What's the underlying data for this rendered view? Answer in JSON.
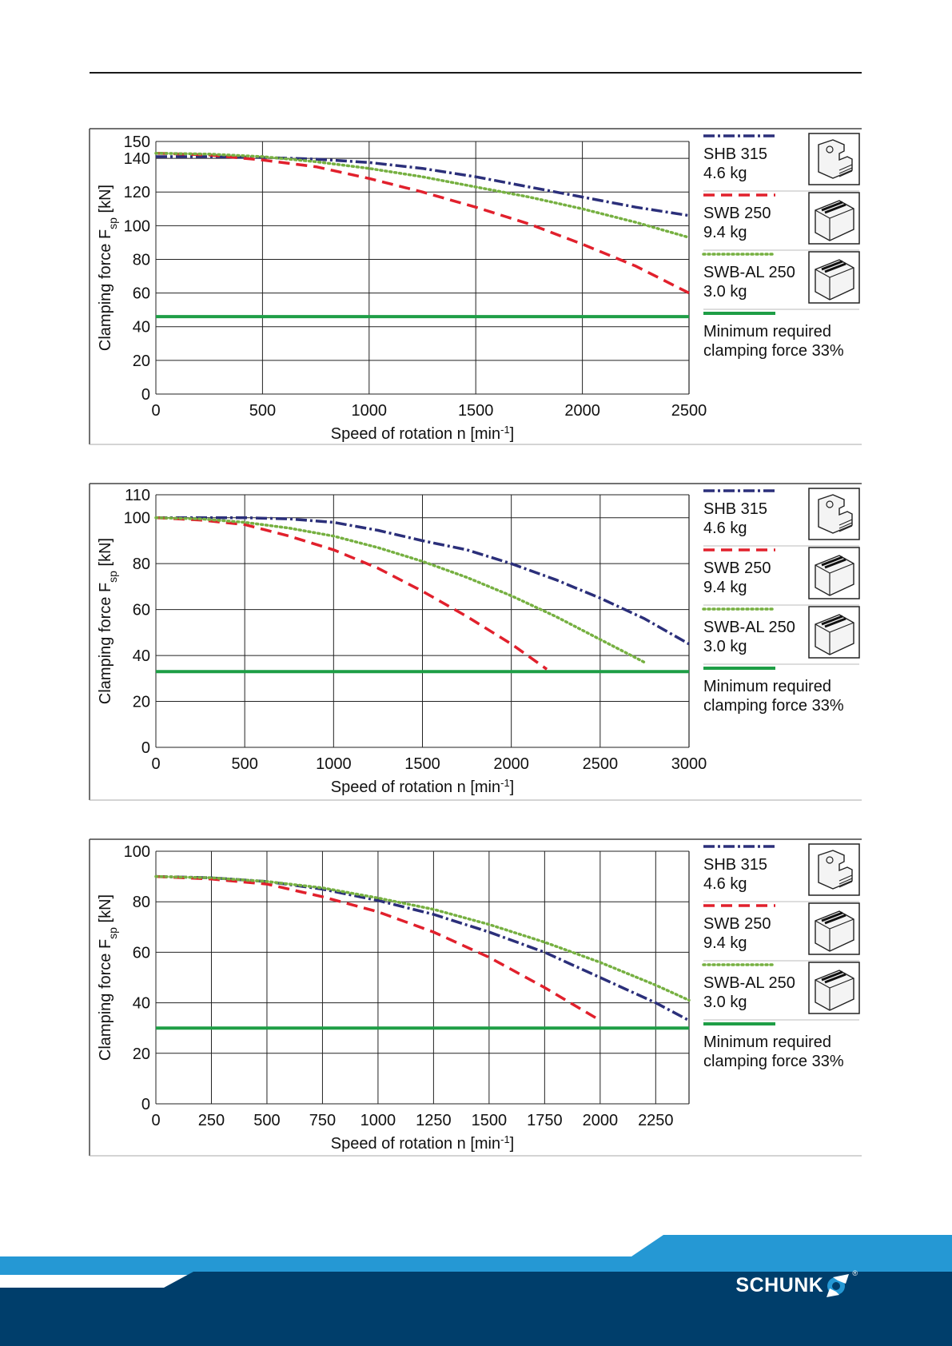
{
  "colors": {
    "shb": "#2b2f7a",
    "swb": "#e1202c",
    "swbal": "#76b041",
    "min": "#1e9e46",
    "footer_light": "#2598d4",
    "footer_dark": "#003e6b"
  },
  "legend": {
    "shb_name": "SHB 315",
    "shb_weight": "4.6 kg",
    "swb_name": "SWB 250",
    "swb_weight": "9.4 kg",
    "swbal_name": "SWB-AL 250",
    "swbal_weight": "3.0 kg",
    "min_line1": "Minimum required",
    "min_line2": "clamping force 33%"
  },
  "brand": {
    "name": "SCHUNK",
    "mark": "®"
  },
  "chart_data": [
    {
      "type": "line",
      "title": "",
      "xlabel": "Speed of rotation n [min-1]",
      "ylabel": "Clamping force Fsp [kN]",
      "xlim": [
        0,
        2500
      ],
      "ylim": [
        0,
        150
      ],
      "x_ticks": [
        0,
        500,
        1000,
        1500,
        2000,
        2500
      ],
      "y_ticks": [
        0,
        20,
        40,
        60,
        80,
        100,
        120,
        140,
        150
      ],
      "series": [
        {
          "name": "SHB 315 4.6 kg",
          "x": [
            0,
            250,
            500,
            750,
            1000,
            1250,
            1500,
            1750,
            2000,
            2250,
            2500
          ],
          "values": [
            141,
            141,
            140.5,
            139.5,
            137.5,
            134,
            129,
            123,
            117,
            111,
            106
          ]
        },
        {
          "name": "SWB 250 9.4 kg",
          "x": [
            0,
            250,
            500,
            750,
            1000,
            1250,
            1500,
            1750,
            2000,
            2250,
            2500
          ],
          "values": [
            143,
            142,
            139,
            135,
            128,
            120,
            111,
            101,
            89,
            76,
            60
          ]
        },
        {
          "name": "SWB-AL 250 3.0 kg",
          "x": [
            0,
            250,
            500,
            750,
            1000,
            1250,
            1500,
            1750,
            2000,
            2250,
            2500
          ],
          "values": [
            143,
            142.5,
            141,
            138,
            134,
            129,
            123,
            117,
            110,
            102,
            93
          ]
        },
        {
          "name": "Minimum required clamping force 33%",
          "x": [
            0,
            2500
          ],
          "values": [
            46,
            46
          ]
        }
      ]
    },
    {
      "type": "line",
      "title": "",
      "xlabel": "Speed of rotation n [min-1]",
      "ylabel": "Clamping force Fsp [kN]",
      "xlim": [
        0,
        3000
      ],
      "ylim": [
        0,
        110
      ],
      "x_ticks": [
        0,
        500,
        1000,
        1500,
        2000,
        2500,
        3000
      ],
      "y_ticks": [
        0,
        20,
        40,
        60,
        80,
        100,
        110
      ],
      "series": [
        {
          "name": "SHB 315 4.6 kg",
          "x": [
            0,
            250,
            500,
            750,
            1000,
            1250,
            1500,
            1750,
            2000,
            2250,
            2500,
            2750,
            3000
          ],
          "values": [
            100,
            100,
            100,
            99.5,
            98,
            94.5,
            90,
            86,
            80,
            73,
            65,
            56,
            45
          ]
        },
        {
          "name": "SWB 250 9.4 kg",
          "x": [
            0,
            250,
            500,
            750,
            1000,
            1250,
            1500,
            1750,
            2000,
            2200
          ],
          "values": [
            100,
            99,
            97,
            92,
            86,
            78,
            68,
            57,
            45,
            34
          ]
        },
        {
          "name": "SWB-AL 250 3.0 kg",
          "x": [
            0,
            250,
            500,
            750,
            1000,
            1250,
            1500,
            1750,
            2000,
            2250,
            2500,
            2750
          ],
          "values": [
            100,
            99.5,
            98,
            95.5,
            92,
            87,
            81,
            74,
            66,
            57,
            47,
            37
          ]
        },
        {
          "name": "Minimum required clamping force 33%",
          "x": [
            0,
            3000
          ],
          "values": [
            33,
            33
          ]
        }
      ]
    },
    {
      "type": "line",
      "title": "",
      "xlabel": "Speed of rotation n [min-1]",
      "ylabel": "Clamping force Fsp [kN]",
      "xlim": [
        0,
        2400
      ],
      "ylim": [
        0,
        100
      ],
      "x_ticks": [
        0,
        250,
        500,
        750,
        1000,
        1250,
        1500,
        1750,
        2000,
        2250
      ],
      "y_ticks": [
        0,
        20,
        40,
        60,
        80,
        100
      ],
      "series": [
        {
          "name": "SHB 315 4.6 kg",
          "x": [
            0,
            250,
            500,
            750,
            1000,
            1250,
            1500,
            1750,
            2000,
            2250,
            2400
          ],
          "values": [
            90,
            89.5,
            88,
            85,
            80.5,
            75,
            68,
            60,
            50,
            40,
            33
          ]
        },
        {
          "name": "SWB 250 9.4 kg",
          "x": [
            0,
            250,
            500,
            750,
            1000,
            1250,
            1500,
            1750,
            2000
          ],
          "values": [
            90,
            89,
            87,
            82,
            76,
            68,
            58,
            46,
            33
          ]
        },
        {
          "name": "SWB-AL 250 3.0 kg",
          "x": [
            0,
            250,
            500,
            750,
            1000,
            1250,
            1500,
            1750,
            2000,
            2250,
            2400
          ],
          "values": [
            90,
            89.5,
            88,
            85.5,
            81.5,
            77,
            71,
            64,
            56,
            47,
            41
          ]
        },
        {
          "name": "Minimum required clamping force 33%",
          "x": [
            0,
            2400
          ],
          "values": [
            30,
            30
          ]
        }
      ]
    }
  ]
}
